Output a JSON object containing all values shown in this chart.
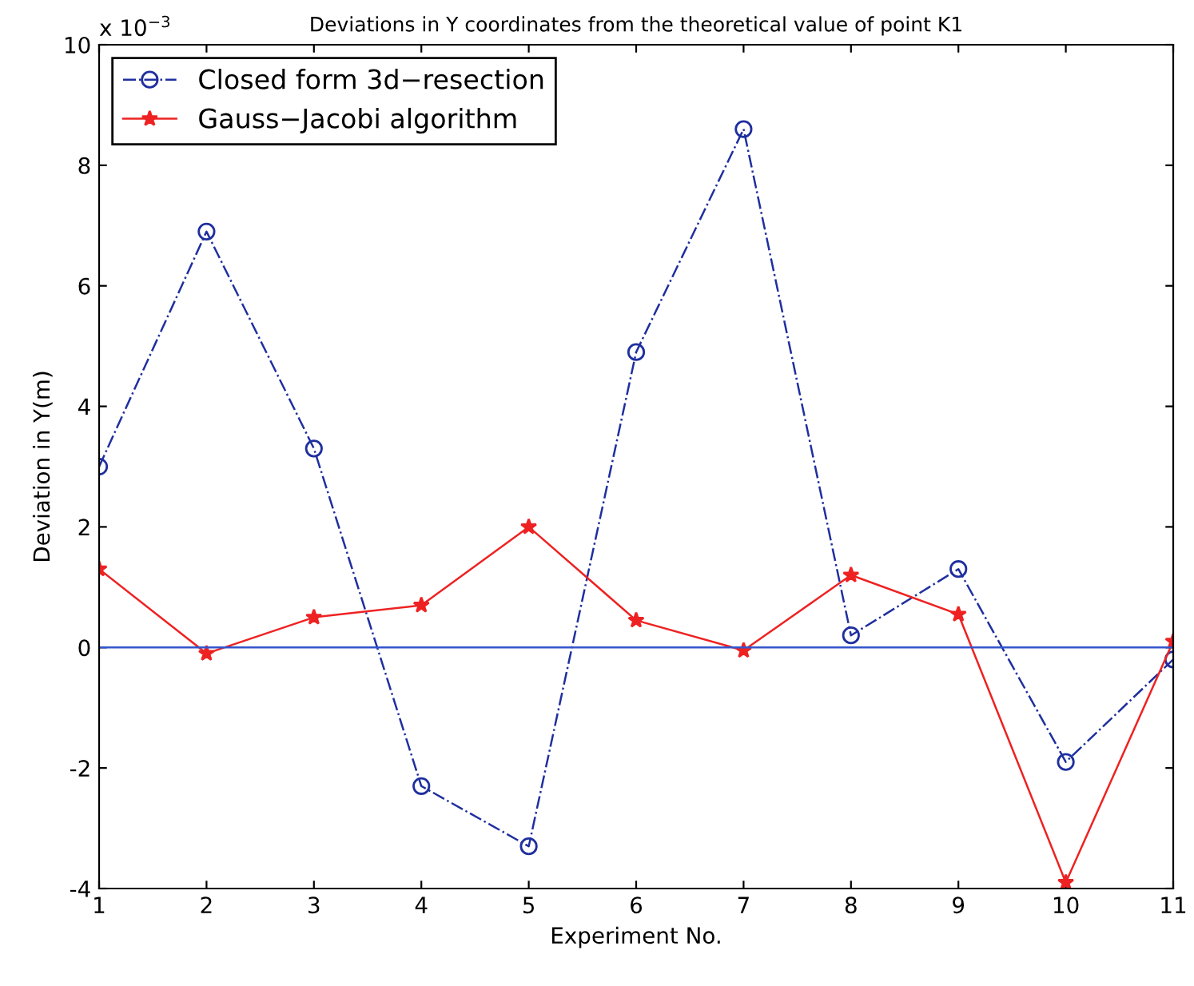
{
  "chart_data": {
    "type": "line",
    "title": "Deviations in Y coordinates from the theoretical value of point K1",
    "xlabel": "Experiment No.",
    "ylabel": "Deviation in Y(m)",
    "x": [
      1,
      2,
      3,
      4,
      5,
      6,
      7,
      8,
      9,
      10,
      11
    ],
    "series": [
      {
        "name": "Closed form 3d−resection",
        "color": "#1f2f9f",
        "marker": "circle",
        "line_style": "dashdot",
        "values": [
          3.0,
          6.9,
          3.3,
          -2.3,
          -3.3,
          4.9,
          8.6,
          0.2,
          1.3,
          -1.9,
          -0.2
        ]
      },
      {
        "name": "Gauss−Jacobi algorithm",
        "color": "#ee2222",
        "marker": "star",
        "line_style": "solid",
        "values": [
          1.3,
          -0.1,
          0.5,
          0.7,
          2.0,
          0.45,
          -0.05,
          1.2,
          0.55,
          -3.9,
          0.1
        ]
      }
    ],
    "ref_lines": [
      {
        "axis": "y",
        "value": 0,
        "color": "#3355cc",
        "line_style": "solid"
      }
    ],
    "annotations": [
      "x 10$^{−3}$"
    ],
    "xlim": [
      1,
      11
    ],
    "xticks": [
      1,
      2,
      3,
      4,
      5,
      6,
      7,
      8,
      9,
      10,
      11
    ],
    "ylim": [
      -4,
      10
    ],
    "yticks": [
      -4,
      -2,
      0,
      2,
      4,
      6,
      8,
      10
    ],
    "grid": false,
    "legend": "top left"
  }
}
